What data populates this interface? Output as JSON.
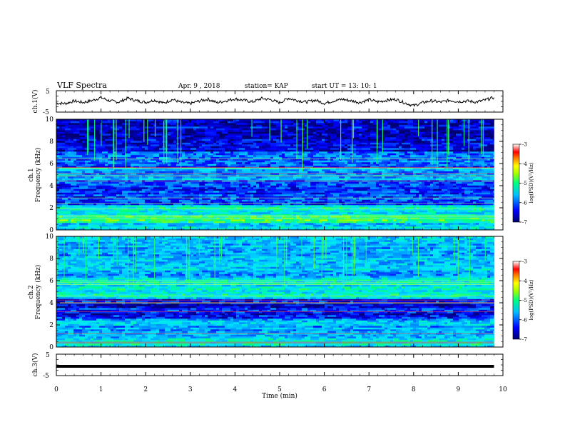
{
  "header": {
    "title": "VLF Spectra",
    "date": "Apr. 9 , 2018",
    "station": "station= KAP",
    "start_time": "start UT = 13: 10: 1"
  },
  "chart_data": [
    {
      "type": "line",
      "name": "ch1-waveform",
      "ylabel": "ch.1(V)",
      "ylim": [
        -5,
        5
      ],
      "yticks": [
        "5",
        "-5"
      ],
      "x": [
        0,
        0.2,
        0.4,
        0.6,
        0.8,
        1.0,
        1.2,
        1.4,
        1.6,
        1.8,
        2.0,
        2.2,
        2.4,
        2.6,
        2.8,
        3.0,
        3.2,
        3.4,
        3.6,
        3.8,
        4.0,
        4.2,
        4.4,
        4.6,
        4.8,
        5.0,
        5.2,
        5.4,
        5.6,
        5.8,
        6.0,
        6.2,
        6.4,
        6.6,
        6.8,
        7.0,
        7.2,
        7.4,
        7.6,
        7.8,
        8.0,
        8.2,
        8.4,
        8.6,
        8.8,
        9.0,
        9.2,
        9.4,
        9.6,
        9.8
      ],
      "y": [
        -0.8,
        -1.0,
        0.2,
        -0.5,
        0.4,
        1.8,
        0.2,
        -0.3,
        1.5,
        0.3,
        -0.4,
        0.6,
        -0.8,
        0.9,
        -0.5,
        -1.0,
        0.2,
        1.0,
        -0.6,
        0.3,
        1.2,
        0.5,
        -0.2,
        1.4,
        0.8,
        -0.6,
        1.5,
        0.4,
        -0.3,
        0.6,
        -0.9,
        0.2,
        1.0,
        0.3,
        -0.5,
        0.8,
        -0.2,
        0.5,
        1.0,
        -0.7,
        -2.0,
        -0.6,
        0.3,
        -0.4,
        0.5,
        -0.1,
        0.2,
        -0.3,
        0.6,
        1.8
      ]
    },
    {
      "type": "heatmap",
      "name": "ch1-spectrogram",
      "ylabel": "ch.1",
      "ylabel2": "Frequency (kHz)",
      "ylim": [
        0,
        10
      ],
      "yticks": [
        "0",
        "2",
        "4",
        "6",
        "8",
        "10"
      ],
      "colorbar": {
        "label": "log(PSD)(V²/Hz)",
        "ticks": [
          "-3",
          "-4",
          "-5",
          "-6",
          "-7"
        ],
        "range": [
          -7,
          -3
        ]
      }
    },
    {
      "type": "heatmap",
      "name": "ch2-spectrogram",
      "ylabel": "ch.2",
      "ylabel2": "Frequency (kHz)",
      "ylim": [
        0,
        10
      ],
      "yticks": [
        "0",
        "2",
        "4",
        "6",
        "8",
        "10"
      ],
      "colorbar": {
        "label": "log(PSD)(V²/Hz)",
        "ticks": [
          "-3",
          "-4",
          "-5",
          "-6",
          "-7"
        ],
        "range": [
          -7,
          -3
        ]
      }
    },
    {
      "type": "line",
      "name": "ch3-waveform",
      "ylabel": "ch.3(V)",
      "ylim": [
        -5,
        5
      ],
      "yticks": [
        "5",
        "-5"
      ],
      "x": [
        0,
        9.8
      ],
      "y": [
        0,
        0
      ]
    }
  ],
  "xaxis": {
    "label": "Time (min)",
    "ticks": [
      "0",
      "1",
      "2",
      "3",
      "4",
      "5",
      "6",
      "7",
      "8",
      "9",
      "10"
    ],
    "xlim": [
      0,
      10
    ],
    "data_end": 9.8
  },
  "colors": {
    "line": "#000000",
    "colormap": [
      "#00007a",
      "#0000ff",
      "#00a0ff",
      "#00ffff",
      "#00ff00",
      "#ffff00",
      "#ff8000",
      "#ff0000",
      "#ffffff"
    ]
  }
}
